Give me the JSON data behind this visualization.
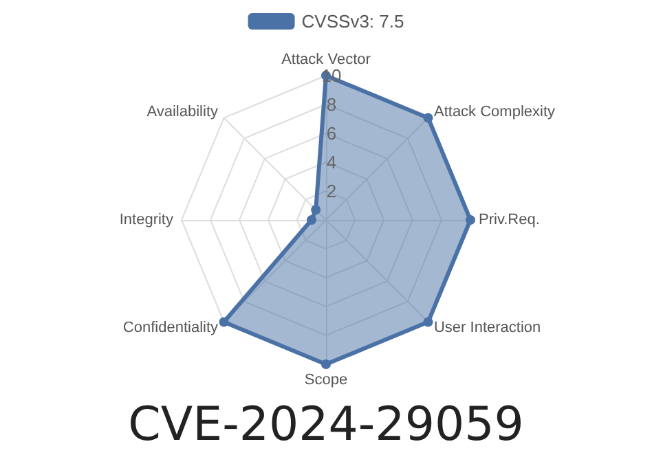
{
  "chart_data": {
    "type": "radar",
    "title": "CVE-2024-29059",
    "categories": [
      "Attack Vector",
      "Attack Complexity",
      "Priv.Req.",
      "User Interaction",
      "Scope",
      "Confidentiality",
      "Integrity",
      "Availability"
    ],
    "series": [
      {
        "name": "CVSSv3: 7.5",
        "color": "#4a72a6",
        "values": [
          10,
          10,
          10,
          10,
          10,
          10,
          1,
          1
        ]
      }
    ],
    "ylim": [
      0,
      10
    ],
    "yticks": [
      2,
      4,
      6,
      8,
      10
    ],
    "legend": "top",
    "marker": "circle"
  }
}
